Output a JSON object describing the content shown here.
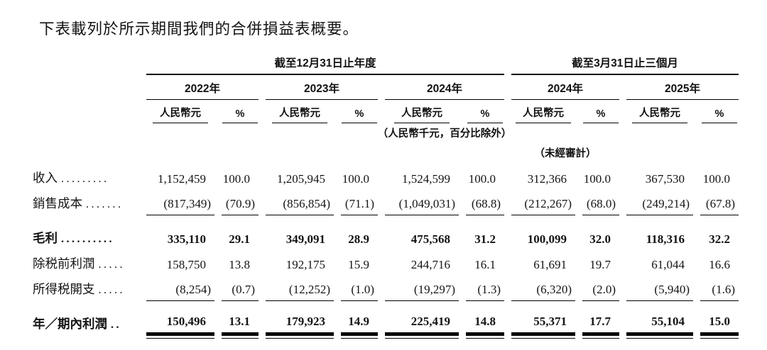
{
  "page": {
    "title": "下表載列於所示期間我們的合併損益表概要。"
  },
  "table": {
    "groups": [
      {
        "label": "截至12月31日止年度"
      },
      {
        "label": "截至3月31日止三個月"
      }
    ],
    "years": [
      "2022年",
      "2023年",
      "2024年",
      "2024年",
      "2025年"
    ],
    "subheaders": {
      "currency": "人民幣元",
      "percent": "%"
    },
    "notes": {
      "units": "（人民幣千元，百分比除外）",
      "unaudited": "（未經審計）"
    },
    "rows": [
      {
        "label": "收入",
        "dots": ".........",
        "bold": false,
        "rule": "none",
        "gap_before": false,
        "values": [
          "1,152,459",
          "100.0",
          "1,205,945",
          "100.0",
          "1,524,599",
          "100.0",
          "312,366",
          "100.0",
          "367,530",
          "100.0"
        ]
      },
      {
        "label": "銷售成本",
        "dots": ".......",
        "bold": false,
        "rule": "single",
        "gap_before": false,
        "values": [
          "(817,349)",
          "(70.9)",
          "(856,854)",
          "(71.1)",
          "(1,049,031)",
          "(68.8)",
          "(212,267)",
          "(68.0)",
          "(249,214)",
          "(67.8)"
        ]
      },
      {
        "label": "毛利",
        "dots": "..........",
        "bold": true,
        "rule": "none",
        "gap_before": true,
        "values": [
          "335,110",
          "29.1",
          "349,091",
          "28.9",
          "475,568",
          "31.2",
          "100,099",
          "32.0",
          "118,316",
          "32.2"
        ]
      },
      {
        "label": "除税前利潤",
        "dots": ".....",
        "bold": false,
        "rule": "none",
        "gap_before": false,
        "values": [
          "158,750",
          "13.8",
          "192,175",
          "15.9",
          "244,716",
          "16.1",
          "61,691",
          "19.7",
          "61,044",
          "16.6"
        ]
      },
      {
        "label": "所得税開支",
        "dots": ".....",
        "bold": false,
        "rule": "single",
        "gap_before": false,
        "values": [
          "(8,254)",
          "(0.7)",
          "(12,252)",
          "(1.0)",
          "(19,297)",
          "(1.3)",
          "(6,320)",
          "(2.0)",
          "(5,940)",
          "(1.6)"
        ]
      },
      {
        "label": "年／期內利潤",
        "dots": "..",
        "bold": true,
        "rule": "double",
        "gap_before": true,
        "values": [
          "150,496",
          "13.1",
          "179,923",
          "14.9",
          "225,419",
          "14.8",
          "55,371",
          "17.7",
          "55,104",
          "15.0"
        ]
      }
    ]
  }
}
